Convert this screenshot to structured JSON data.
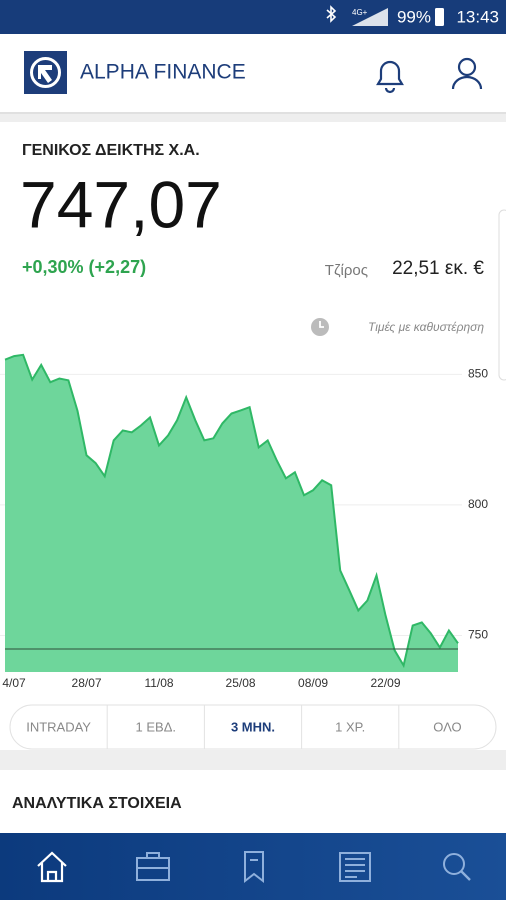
{
  "status_bar": {
    "network": "4G+",
    "battery": "99%",
    "time": "13:43"
  },
  "header": {
    "brand": "ALPHA FINANCE"
  },
  "index": {
    "name": "ΓΕΝΙΚΟΣ ΔΕΙΚΤΗΣ Χ.Α.",
    "value": "747,07",
    "change": "+0,30% (+2,27)",
    "turnover_label": "Τζίρος",
    "turnover": "22,51 εκ. €",
    "delay_note": "Τιμές με καθυστέρηση"
  },
  "chart_data": {
    "type": "area",
    "color": "#6ed69b",
    "line_color": "#2fb866",
    "categories": [
      null,
      "4/07",
      null,
      null,
      null,
      null,
      null,
      null,
      null,
      "28/07",
      null,
      null,
      null,
      null,
      null,
      null,
      null,
      "11/08",
      null,
      null,
      null,
      null,
      null,
      null,
      null,
      null,
      "25/08",
      null,
      null,
      null,
      null,
      null,
      null,
      null,
      "08/09",
      null,
      null,
      null,
      null,
      null,
      null,
      null,
      "22/09",
      null,
      null,
      null,
      null,
      null,
      null,
      null,
      null
    ],
    "values": [
      855.6,
      857,
      857.5,
      848,
      853.6,
      847,
      848.4,
      847.7,
      836,
      819,
      816,
      811,
      824.7,
      828.5,
      827.8,
      830.4,
      833.5,
      822.8,
      826.6,
      832.4,
      841.2,
      832.4,
      824.7,
      825.5,
      831.2,
      835,
      836.2,
      837.4,
      822,
      824.7,
      817,
      810.2,
      812.5,
      803.7,
      805.6,
      809.4,
      807.5,
      774.9,
      767.3,
      759.6,
      763.4,
      773,
      757.7,
      744.3,
      738.5,
      753.8,
      755,
      750.8,
      745.4,
      751.9,
      747
    ],
    "reference": 744.8,
    "ylim": [
      736,
      862
    ],
    "yticks": [
      750,
      800,
      850
    ],
    "grid": true
  },
  "tabs": {
    "items": [
      "INTRADAY",
      "1 ΕΒΔ.",
      "3 ΜΗΝ.",
      "1 ΧΡ.",
      "ΟΛΟ"
    ],
    "selected": 2
  },
  "section": {
    "title": "ΑΝΑΛΥΤΙΚΑ ΣΤΟΙΧΕΙΑ"
  }
}
